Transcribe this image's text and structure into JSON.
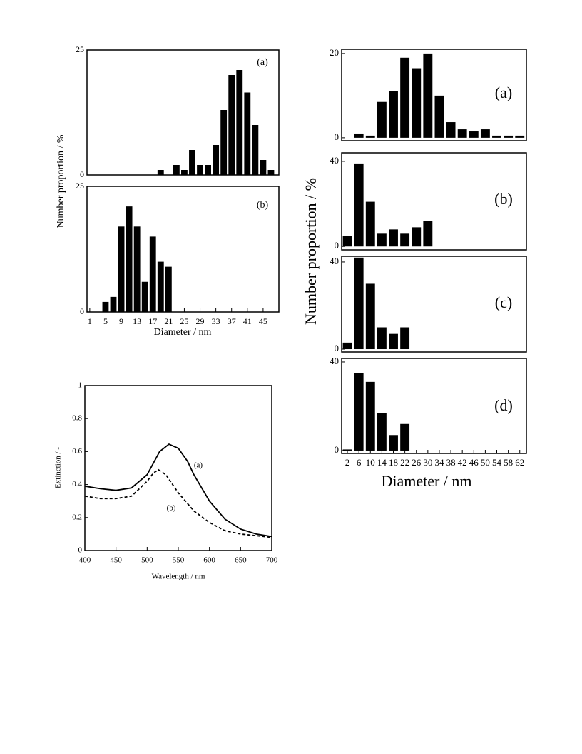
{
  "chart_data": [
    {
      "type": "bar",
      "ylabel": "Number proportion / %",
      "annotation": "(a)",
      "x": [
        1,
        3,
        5,
        7,
        9,
        11,
        13,
        15,
        17,
        19,
        21,
        23,
        25,
        27,
        29,
        31,
        33,
        35,
        37,
        39,
        41,
        43,
        45,
        47
      ],
      "values": [
        0,
        0,
        0,
        0,
        0,
        0,
        0,
        0,
        0,
        1,
        0,
        2,
        1,
        5,
        2,
        2,
        6,
        13,
        20,
        21,
        16.5,
        10,
        3,
        1
      ],
      "color": "#000000",
      "xlim": [
        0.3,
        49
      ],
      "ylim": [
        0,
        25
      ],
      "yticks": [
        0,
        25
      ]
    },
    {
      "type": "bar",
      "xlabel": "Diameter / nm",
      "annotation": "(b)",
      "x": [
        1,
        3,
        5,
        7,
        9,
        11,
        13,
        15,
        17,
        19,
        21,
        23,
        25,
        27,
        29,
        31,
        33,
        35,
        37,
        39,
        41,
        43,
        45,
        47
      ],
      "values": [
        0,
        0,
        2,
        3,
        17,
        21,
        17,
        6,
        15,
        10,
        9,
        0,
        0,
        0,
        0,
        0,
        0,
        0,
        0,
        0,
        0,
        0,
        0,
        0
      ],
      "color": "#000000",
      "xlim": [
        0.3,
        49
      ],
      "ylim": [
        0,
        25
      ],
      "yticks": [
        0,
        25
      ],
      "xticks": [
        1,
        5,
        9,
        13,
        17,
        21,
        25,
        29,
        33,
        37,
        41,
        45
      ]
    },
    {
      "type": "bar",
      "ylabel": "Number proportion / %",
      "annotation": "(a)",
      "x": [
        2,
        6,
        10,
        14,
        18,
        22,
        26,
        30,
        34,
        38,
        42,
        46,
        50,
        54,
        58,
        62
      ],
      "values": [
        0,
        1,
        0.5,
        8.5,
        11,
        19,
        16.5,
        20,
        10,
        3.7,
        2,
        1.5,
        2,
        0.5,
        0.5,
        0.5
      ],
      "color": "#000000",
      "xlim": [
        0,
        64.3
      ],
      "ylim": [
        -0.7,
        21
      ],
      "yticks": [
        0,
        20
      ]
    },
    {
      "type": "bar",
      "annotation": "(b)",
      "x": [
        2,
        6,
        10,
        14,
        18,
        22,
        26,
        30,
        34,
        38,
        42,
        46,
        50,
        54,
        58,
        62
      ],
      "values": [
        5,
        39,
        21,
        6,
        8,
        6,
        9,
        12,
        0,
        0,
        0,
        0,
        0,
        0,
        0,
        0
      ],
      "color": "#000000",
      "xlim": [
        0,
        64.3
      ],
      "ylim": [
        -1.6,
        44
      ],
      "yticks": [
        0,
        40
      ]
    },
    {
      "type": "bar",
      "annotation": "(c)",
      "x": [
        2,
        6,
        10,
        14,
        18,
        22,
        26,
        30,
        34,
        38,
        42,
        46,
        50,
        54,
        58,
        62
      ],
      "values": [
        3,
        42,
        30,
        10,
        7,
        10,
        0,
        0,
        0,
        0,
        0,
        0,
        0,
        0,
        0,
        0
      ],
      "color": "#000000",
      "xlim": [
        0,
        64.3
      ],
      "ylim": [
        -1.3,
        42.6
      ],
      "yticks": [
        0,
        40
      ]
    },
    {
      "type": "bar",
      "annotation": "(d)",
      "xlabel": "Diameter / nm",
      "x": [
        2,
        6,
        10,
        14,
        18,
        22,
        26,
        30,
        34,
        38,
        42,
        46,
        50,
        54,
        58,
        62
      ],
      "values": [
        0.5,
        35,
        31,
        17,
        7,
        12,
        0,
        0,
        0,
        0,
        0,
        0,
        0,
        0,
        0,
        0
      ],
      "color": "#000000",
      "xlim": [
        0,
        64.3
      ],
      "ylim": [
        -1.3,
        41.6
      ],
      "yticks": [
        0,
        40
      ],
      "xticks": [
        2,
        6,
        10,
        14,
        18,
        22,
        26,
        30,
        34,
        38,
        42,
        46,
        50,
        54,
        58,
        62
      ]
    },
    {
      "type": "line",
      "xlabel": "Wavelength / nm",
      "ylabel": "Extinction / -",
      "xlim": [
        400,
        700
      ],
      "ylim": [
        0,
        1
      ],
      "xticks": [
        400,
        450,
        500,
        550,
        600,
        650,
        700
      ],
      "yticks": [
        0,
        0.2,
        0.4,
        0.6,
        0.8,
        1
      ],
      "series": [
        {
          "name": "(a)",
          "color": "#000000",
          "dash": false,
          "x": [
            400,
            425,
            450,
            475,
            500,
            510,
            520,
            535,
            550,
            565,
            575,
            600,
            625,
            650,
            675,
            700
          ],
          "values": [
            0.39,
            0.375,
            0.365,
            0.38,
            0.46,
            0.53,
            0.6,
            0.645,
            0.62,
            0.54,
            0.46,
            0.3,
            0.19,
            0.13,
            0.1,
            0.085
          ]
        },
        {
          "name": "(b)",
          "color": "#000000",
          "dash": true,
          "x": [
            400,
            425,
            450,
            475,
            500,
            510,
            518,
            530,
            550,
            575,
            600,
            625,
            650,
            675,
            700
          ],
          "values": [
            0.33,
            0.315,
            0.315,
            0.33,
            0.42,
            0.47,
            0.49,
            0.46,
            0.35,
            0.24,
            0.17,
            0.12,
            0.1,
            0.09,
            0.08
          ]
        }
      ]
    }
  ]
}
